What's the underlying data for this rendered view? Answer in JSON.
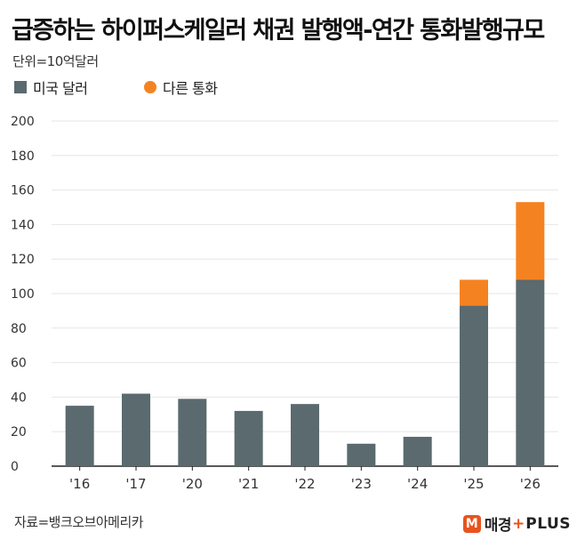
{
  "title": "급증하는 하이퍼스케일러 채권 발행액-연간 통화발행규모",
  "unit": "단위=10억달러",
  "legend": [
    {
      "label": "미국 달러",
      "color": "#5a6a6f"
    },
    {
      "label": "다른 통화",
      "color": "#f58220"
    }
  ],
  "source": "자료=뱅크오브아메리카",
  "logo": {
    "name": "매경",
    "plus": "+",
    "en": "PLUS",
    "badge": "M"
  },
  "chart_data": {
    "type": "bar",
    "stacked": true,
    "categories": [
      "'16",
      "'17",
      "'20",
      "'21",
      "'22",
      "'23",
      "'24",
      "'25",
      "'26"
    ],
    "series": [
      {
        "name": "미국 달러",
        "color": "#5a6a6f",
        "values": [
          35,
          42,
          39,
          32,
          36,
          13,
          17,
          93,
          108
        ]
      },
      {
        "name": "다른 통화",
        "color": "#f58220",
        "values": [
          0,
          0,
          0,
          0,
          0,
          0,
          0,
          15,
          45
        ]
      }
    ],
    "ylim": [
      0,
      200
    ],
    "yticks": [
      0,
      20,
      40,
      60,
      80,
      100,
      120,
      140,
      160,
      180,
      200
    ],
    "grid": true,
    "legend_position": "top-left"
  }
}
